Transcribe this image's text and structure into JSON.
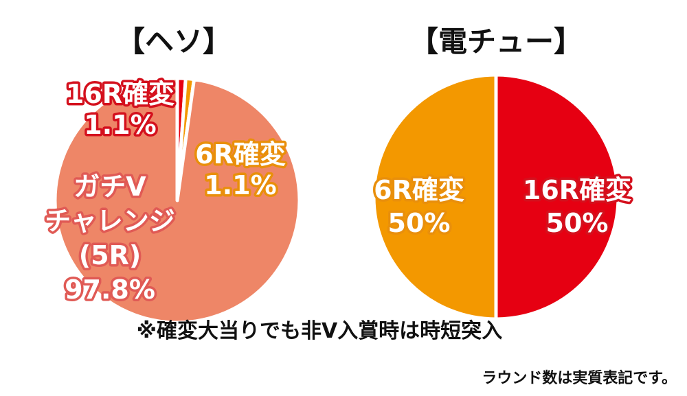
{
  "chart_data": [
    {
      "type": "pie",
      "title": "【ヘソ】",
      "slices": [
        {
          "label": [
            "16R確変",
            "1.1%"
          ],
          "value": 1.1,
          "color": "#e60012",
          "text_color": "red"
        },
        {
          "label": [
            "6R確変",
            "1.1%"
          ],
          "value": 1.1,
          "color": "#f39800",
          "text_color": "orange"
        },
        {
          "label": [
            "ガチV",
            "チャレンジ",
            "(5R)",
            "97.8%"
          ],
          "value": 97.8,
          "color": "#ee8667",
          "text_color": "coral"
        }
      ]
    },
    {
      "type": "pie",
      "title": "【電チュー】",
      "slices": [
        {
          "label": [
            "16R確変",
            "50%"
          ],
          "value": 50,
          "color": "#e60012",
          "text_color": "red"
        },
        {
          "label": [
            "6R確変",
            "50%"
          ],
          "value": 50,
          "color": "#f39800",
          "text_color": "orange"
        }
      ]
    }
  ],
  "note": "※確変大当りでも非V入賞時は時短突入",
  "footnote": "ラウンド数は実質表記です。"
}
